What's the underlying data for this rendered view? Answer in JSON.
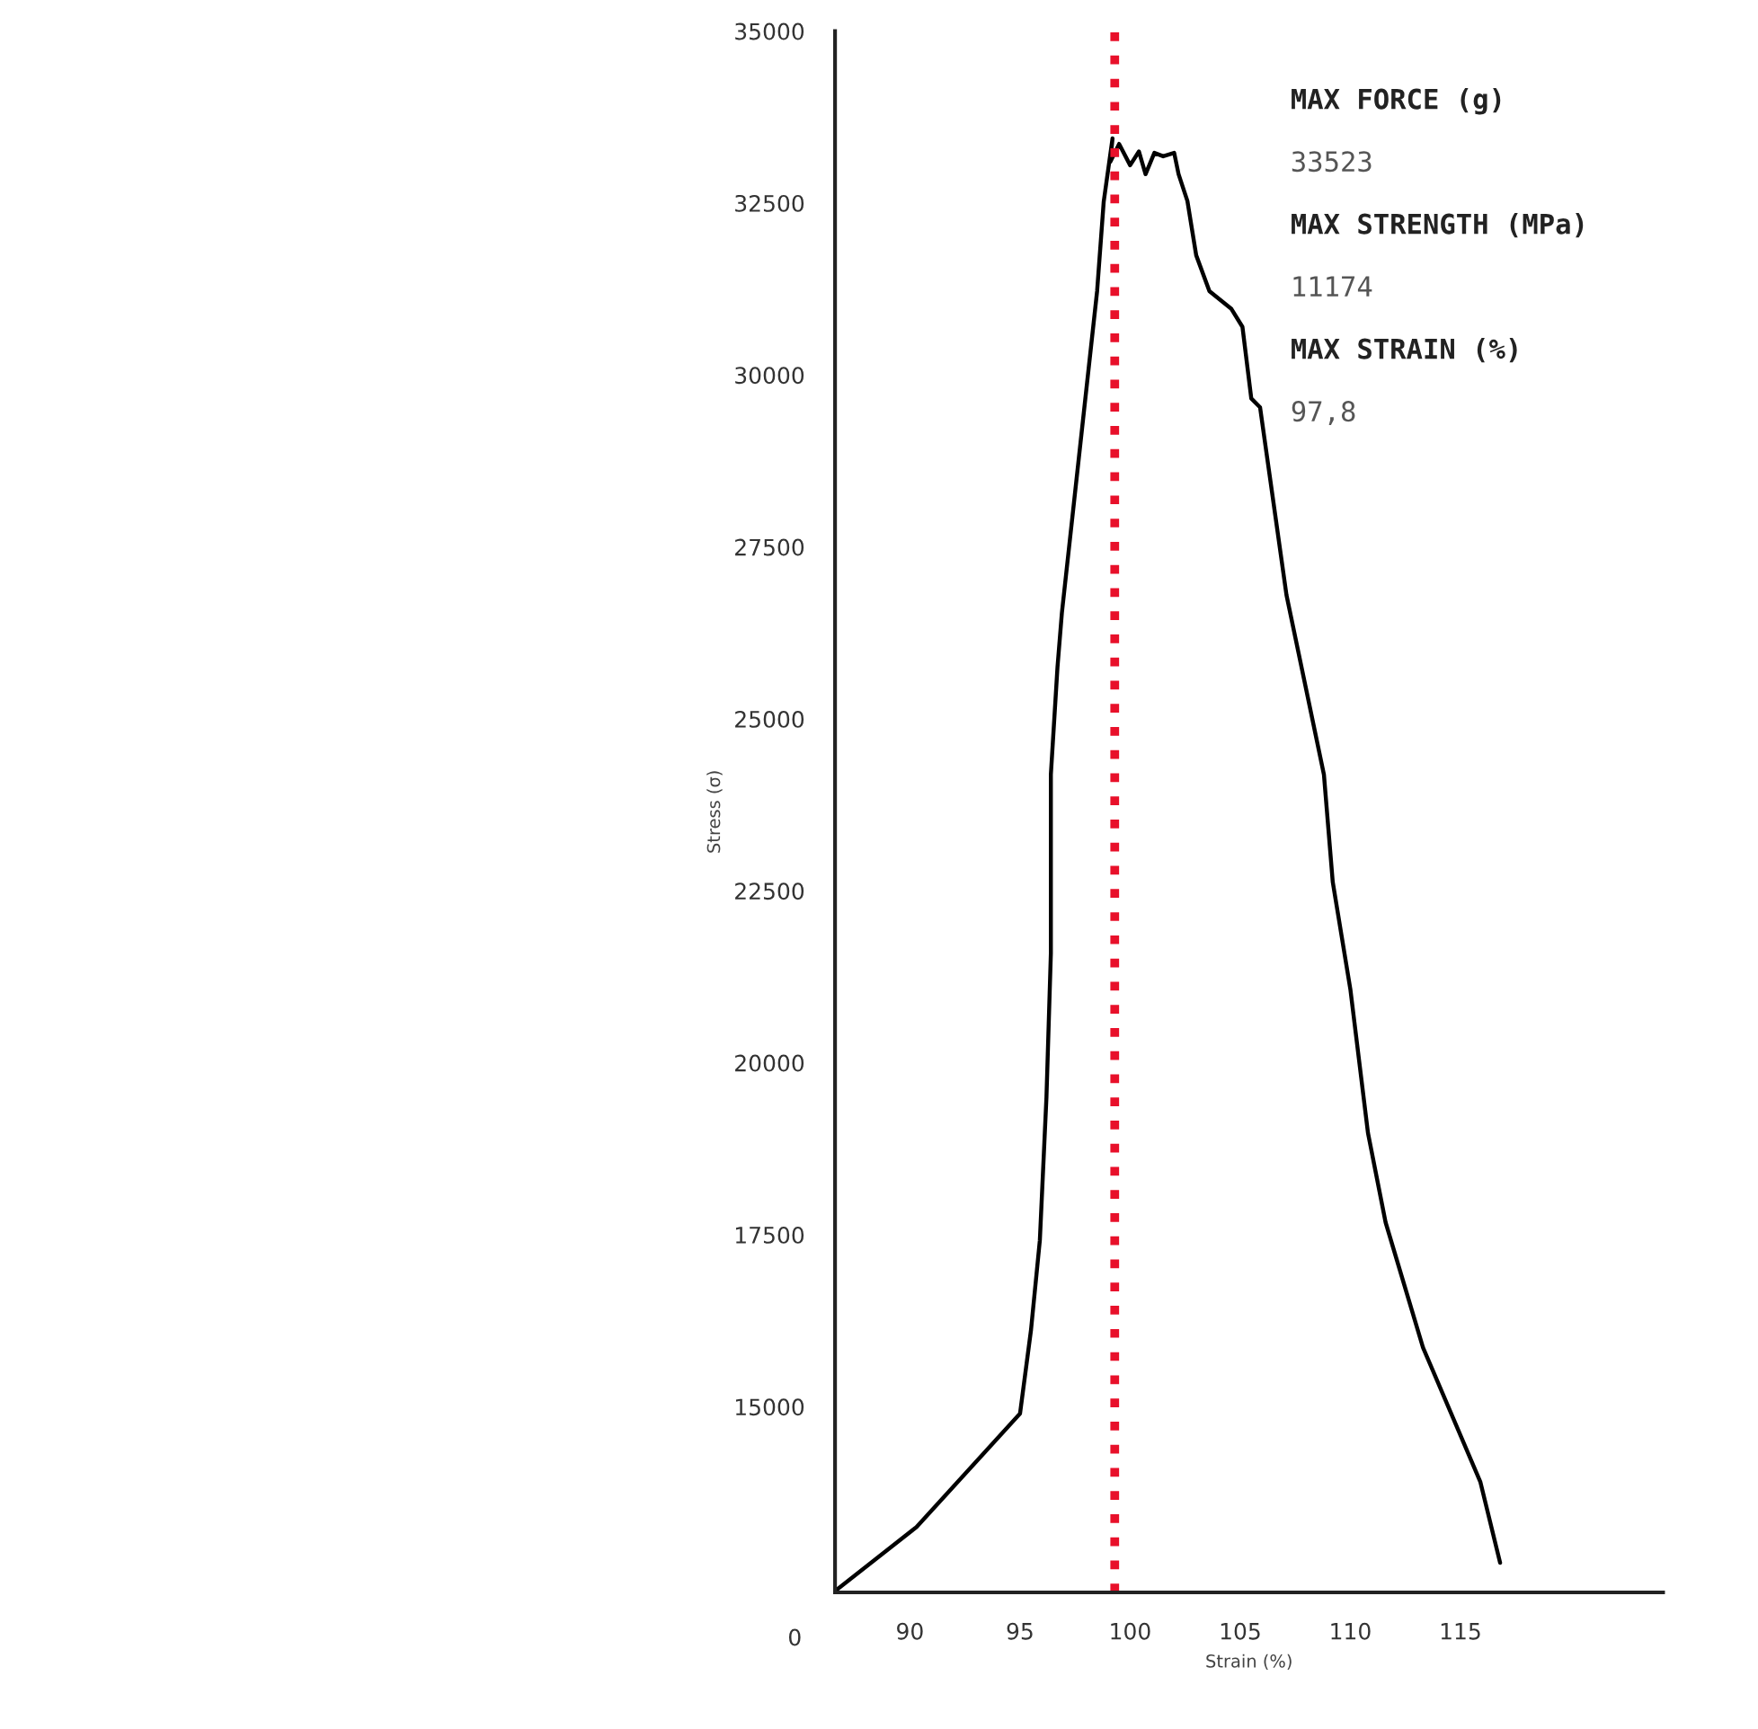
{
  "chart_data": {
    "type": "line",
    "xlabel": "Strain (%)",
    "ylabel": "Stress (σ)",
    "annotations": [
      "0",
      "MAX FORCE (g)",
      "33523",
      "MAX STRENGTH (MPa)",
      "11174",
      "MAX STRAIN (%)",
      "97,8"
    ],
    "xlim": [
      86.6,
      124.2
    ],
    "xticks": [
      90,
      95,
      100,
      105,
      110,
      115
    ],
    "ylim": [
      12300,
      35000
    ],
    "yticks": [
      15000,
      17500,
      20000,
      22500,
      25000,
      27500,
      30000,
      32500,
      35000
    ],
    "grid": false,
    "legend": false,
    "marker": "none",
    "line_style": "solid",
    "ref_lines": [
      {
        "axis": "x",
        "value": 99.3,
        "color": "#e8102a",
        "line_style": "dotted"
      }
    ],
    "series": [
      {
        "color": "#000000",
        "x": [
          86.6,
          90.3,
          95.0,
          95.5,
          95.9,
          96.2,
          96.4,
          96.4,
          96.7,
          96.9,
          97.7,
          98.5,
          98.8,
          99.2,
          99.1,
          99.5,
          100.0,
          100.4,
          100.7,
          101.1,
          101.5,
          102.0,
          102.2,
          102.6,
          103.0,
          103.6,
          104.6,
          105.1,
          105.5,
          105.9,
          106.3,
          107.1,
          108.8,
          109.2,
          109.6,
          110.0,
          110.8,
          111.6,
          113.3,
          115.9,
          116.8
        ],
        "values": [
          12320,
          13250,
          14900,
          16120,
          17420,
          19500,
          21590,
          24190,
          25750,
          26540,
          28880,
          31220,
          32520,
          33440,
          33100,
          33360,
          33050,
          33250,
          32920,
          33230,
          33180,
          33230,
          32920,
          32530,
          31740,
          31220,
          30960,
          30700,
          29660,
          29530,
          28620,
          26800,
          24190,
          22630,
          21850,
          21070,
          18980,
          17680,
          15860,
          13910,
          12730
        ]
      }
    ]
  }
}
